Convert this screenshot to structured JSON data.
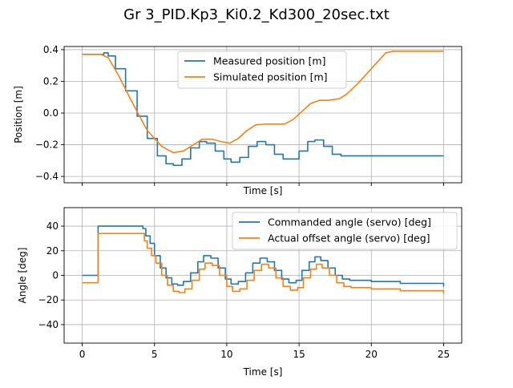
{
  "figure_title": "Gr 3_PID.Kp3_Ki0.2_Kd300_20sec.txt",
  "chart_data": [
    {
      "type": "line",
      "xlabel": "Time [s]",
      "ylabel": "Position [m]",
      "xlim": [
        -1.25,
        26.25
      ],
      "ylim": [
        -0.44,
        0.42
      ],
      "xticks": [
        0,
        5,
        10,
        15,
        20,
        25
      ],
      "xtick_labels_visible": false,
      "yticks": [
        -0.4,
        -0.2,
        0.0,
        0.2,
        0.4
      ],
      "ytick_labels": [
        "−0.4",
        "−0.2",
        "0.0",
        "0.2",
        "0.4"
      ],
      "grid": true,
      "legend": "top-center",
      "series": [
        {
          "name": "Measured position [m]",
          "color": "#1f77b4",
          "step": true,
          "x": [
            0,
            1.0,
            1.5,
            1.8,
            2.3,
            3.0,
            3.8,
            4.5,
            5.2,
            5.8,
            6.3,
            6.9,
            7.5,
            8.1,
            8.6,
            9.2,
            9.8,
            10.3,
            10.9,
            11.5,
            12.1,
            12.7,
            13.3,
            13.9,
            14.5,
            15.0,
            15.6,
            16.1,
            16.7,
            17.3,
            17.9,
            18.5,
            19.5,
            20.5,
            25
          ],
          "y": [
            0.37,
            0.37,
            0.38,
            0.36,
            0.28,
            0.14,
            -0.02,
            -0.16,
            -0.27,
            -0.32,
            -0.33,
            -0.29,
            -0.22,
            -0.18,
            -0.19,
            -0.24,
            -0.29,
            -0.31,
            -0.28,
            -0.21,
            -0.18,
            -0.2,
            -0.26,
            -0.29,
            -0.29,
            -0.24,
            -0.18,
            -0.17,
            -0.21,
            -0.26,
            -0.27,
            -0.27,
            -0.27,
            -0.27,
            -0.27
          ]
        },
        {
          "name": "Simulated position [m]",
          "color": "#ff7f0e",
          "step": false,
          "x": [
            0,
            1.3,
            1.8,
            2.5,
            3.5,
            4.5,
            5.5,
            6.3,
            7.0,
            7.7,
            8.3,
            9.0,
            9.6,
            10.2,
            10.8,
            11.4,
            12.0,
            12.6,
            13.2,
            14.0,
            14.6,
            15.2,
            15.8,
            16.4,
            17.0,
            17.8,
            18.3,
            19.0,
            20.0,
            21.0,
            21.5,
            22.5,
            25
          ],
          "y": [
            0.37,
            0.37,
            0.35,
            0.24,
            0.06,
            -0.11,
            -0.21,
            -0.25,
            -0.24,
            -0.2,
            -0.165,
            -0.165,
            -0.18,
            -0.19,
            -0.16,
            -0.11,
            -0.075,
            -0.07,
            -0.07,
            -0.07,
            -0.04,
            0.01,
            0.06,
            0.08,
            0.08,
            0.09,
            0.12,
            0.18,
            0.28,
            0.38,
            0.39,
            0.39,
            0.39
          ]
        }
      ]
    },
    {
      "type": "line",
      "xlabel": "Time [s]",
      "ylabel": "Angle [deg]",
      "xlim": [
        -1.25,
        26.25
      ],
      "ylim": [
        -55,
        55
      ],
      "xticks": [
        0,
        5,
        10,
        15,
        20,
        25
      ],
      "xtick_labels": [
        "0",
        "5",
        "10",
        "15",
        "20",
        "25"
      ],
      "yticks": [
        -40,
        -20,
        0,
        20,
        40
      ],
      "ytick_labels": [
        "−40",
        "−20",
        "0",
        "20",
        "40"
      ],
      "grid": true,
      "legend": "top-right",
      "series": [
        {
          "name": "Commanded angle (servo) [deg]",
          "color": "#1f77b4",
          "step": true,
          "x": [
            0,
            1.0,
            1.1,
            2.0,
            3.0,
            4.0,
            4.2,
            4.4,
            4.7,
            5.0,
            5.4,
            5.8,
            6.2,
            6.6,
            7.0,
            7.5,
            8.0,
            8.4,
            8.9,
            9.4,
            9.9,
            10.3,
            10.8,
            11.3,
            11.8,
            12.3,
            12.8,
            13.3,
            13.8,
            14.3,
            14.8,
            15.2,
            15.7,
            16.1,
            16.5,
            17.0,
            17.5,
            18.0,
            18.5,
            19.0,
            20.0,
            22.0,
            25.0
          ],
          "y": [
            0,
            0,
            40,
            40,
            40,
            40,
            38,
            32,
            26,
            16,
            6,
            -2,
            -7,
            -8,
            -5,
            2,
            11,
            16,
            14,
            6,
            -3,
            -7,
            -5,
            2,
            10,
            14,
            11,
            4,
            -3,
            -6,
            -4,
            4,
            11,
            15,
            12,
            6,
            0,
            -3,
            -4,
            -4,
            -5,
            -6.5,
            -9
          ]
        },
        {
          "name": "Actual offset angle (servo) [deg]",
          "color": "#ff7f0e",
          "step": true,
          "x": [
            0,
            1.0,
            1.1,
            2.0,
            3.0,
            4.1,
            4.3,
            4.5,
            4.8,
            5.1,
            5.5,
            5.9,
            6.3,
            6.7,
            7.1,
            7.6,
            8.1,
            8.5,
            9.0,
            9.5,
            10.0,
            10.4,
            10.9,
            11.4,
            11.9,
            12.4,
            12.9,
            13.4,
            13.9,
            14.4,
            14.9,
            15.3,
            15.8,
            16.2,
            16.6,
            17.1,
            17.6,
            18.1,
            18.6,
            19.1,
            20.0,
            22.0,
            25.0
          ],
          "y": [
            -6,
            -6,
            34,
            34,
            34,
            34,
            28,
            22,
            16,
            10,
            0,
            -8,
            -13,
            -14,
            -11,
            -4,
            5,
            10,
            8,
            0,
            -9,
            -13,
            -11,
            -4,
            4,
            9,
            6,
            -2,
            -9,
            -12,
            -10,
            -2,
            5,
            9,
            6,
            0,
            -6,
            -9,
            -10,
            -10,
            -11,
            -12.5,
            -15
          ]
        }
      ]
    }
  ]
}
